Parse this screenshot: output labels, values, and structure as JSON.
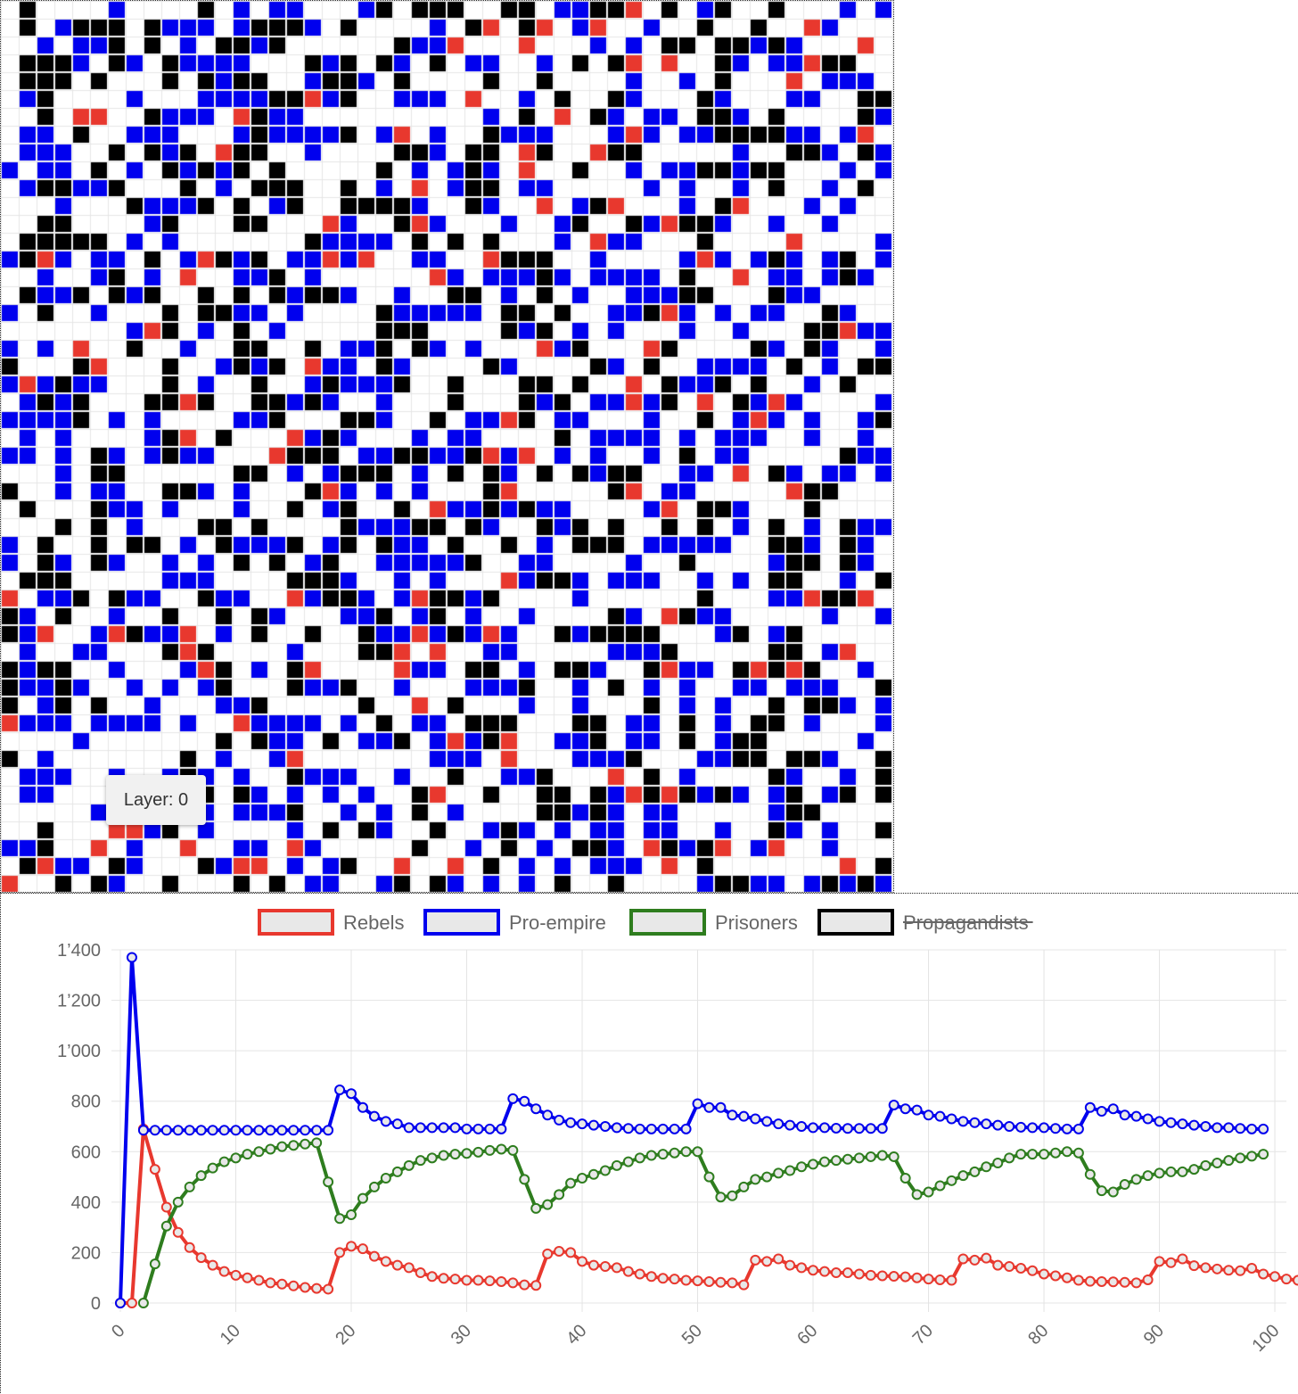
{
  "grid_panel": {
    "tooltip_text": "Layer: 0",
    "colors": {
      "rebel": "#e8382e",
      "pro_empire": "#0000ee",
      "propagandist": "#000000",
      "empty": "#ffffff",
      "gridline": "#e6e6e6"
    }
  },
  "chart_data": {
    "type": "line",
    "legend_position": "top",
    "grid": true,
    "xlim": [
      0,
      101
    ],
    "ylim": [
      0,
      1400
    ],
    "x_ticks": [
      0,
      10,
      20,
      30,
      40,
      50,
      60,
      70,
      80,
      90,
      100
    ],
    "y_ticks": [
      0,
      200,
      400,
      600,
      800,
      1000,
      1200,
      1400
    ],
    "y_tick_labels": [
      "0",
      "200",
      "400",
      "600",
      "800",
      "1’000",
      "1’200",
      "1’400"
    ],
    "series": [
      {
        "name": "Rebels",
        "color": "#e8382e",
        "hidden": false,
        "values": [
          0,
          0,
          690,
          530,
          380,
          280,
          220,
          180,
          150,
          125,
          110,
          100,
          90,
          80,
          75,
          68,
          62,
          58,
          55,
          200,
          225,
          215,
          185,
          165,
          150,
          140,
          120,
          105,
          98,
          95,
          90,
          90,
          88,
          85,
          80,
          72,
          70,
          195,
          205,
          200,
          165,
          150,
          145,
          140,
          125,
          115,
          105,
          98,
          95,
          90,
          88,
          85,
          82,
          80,
          72,
          170,
          165,
          175,
          150,
          140,
          130,
          125,
          120,
          120,
          115,
          110,
          108,
          106,
          104,
          100,
          95,
          92,
          90,
          175,
          170,
          178,
          150,
          145,
          138,
          128,
          115,
          108,
          100,
          90,
          86,
          85,
          84,
          82,
          80,
          92,
          165,
          160,
          175,
          148,
          140,
          135,
          130,
          128,
          138,
          115,
          105,
          95,
          90,
          85
        ]
      },
      {
        "name": "Pro-empire",
        "color": "#0000ee",
        "hidden": false,
        "values": [
          0,
          1370,
          685,
          685,
          685,
          685,
          685,
          685,
          685,
          685,
          685,
          685,
          685,
          685,
          685,
          685,
          685,
          685,
          685,
          845,
          830,
          775,
          740,
          720,
          710,
          695,
          695,
          695,
          695,
          695,
          690,
          690,
          690,
          690,
          810,
          800,
          770,
          745,
          725,
          715,
          710,
          705,
          700,
          695,
          692,
          690,
          690,
          690,
          690,
          690,
          790,
          775,
          775,
          745,
          740,
          730,
          720,
          710,
          705,
          700,
          695,
          695,
          693,
          692,
          692,
          692,
          692,
          785,
          770,
          765,
          745,
          740,
          730,
          720,
          715,
          710,
          705,
          700,
          697,
          695,
          695,
          692,
          690,
          690,
          775,
          760,
          770,
          745,
          740,
          730,
          720,
          715,
          710,
          705,
          700,
          695,
          695,
          692,
          690,
          690
        ]
      },
      {
        "name": "Prisoners",
        "color": "#2e7d1e",
        "hidden": false,
        "values": [
          null,
          null,
          0,
          155,
          305,
          400,
          460,
          505,
          535,
          560,
          575,
          590,
          600,
          610,
          620,
          625,
          630,
          635,
          480,
          335,
          350,
          415,
          460,
          495,
          520,
          545,
          565,
          575,
          585,
          590,
          593,
          598,
          605,
          610,
          605,
          490,
          375,
          390,
          430,
          475,
          495,
          510,
          525,
          545,
          560,
          575,
          585,
          590,
          595,
          600,
          600,
          500,
          420,
          425,
          460,
          490,
          500,
          515,
          525,
          540,
          550,
          560,
          565,
          570,
          575,
          580,
          585,
          580,
          495,
          430,
          440,
          465,
          485,
          505,
          520,
          540,
          555,
          575,
          590,
          590,
          590,
          595,
          600,
          595,
          510,
          445,
          440,
          470,
          490,
          505,
          515,
          520,
          520,
          530,
          545,
          555,
          565,
          575,
          582,
          590
        ]
      },
      {
        "name": "Propagandists",
        "color": "#000000",
        "hidden": true,
        "values": []
      }
    ]
  }
}
